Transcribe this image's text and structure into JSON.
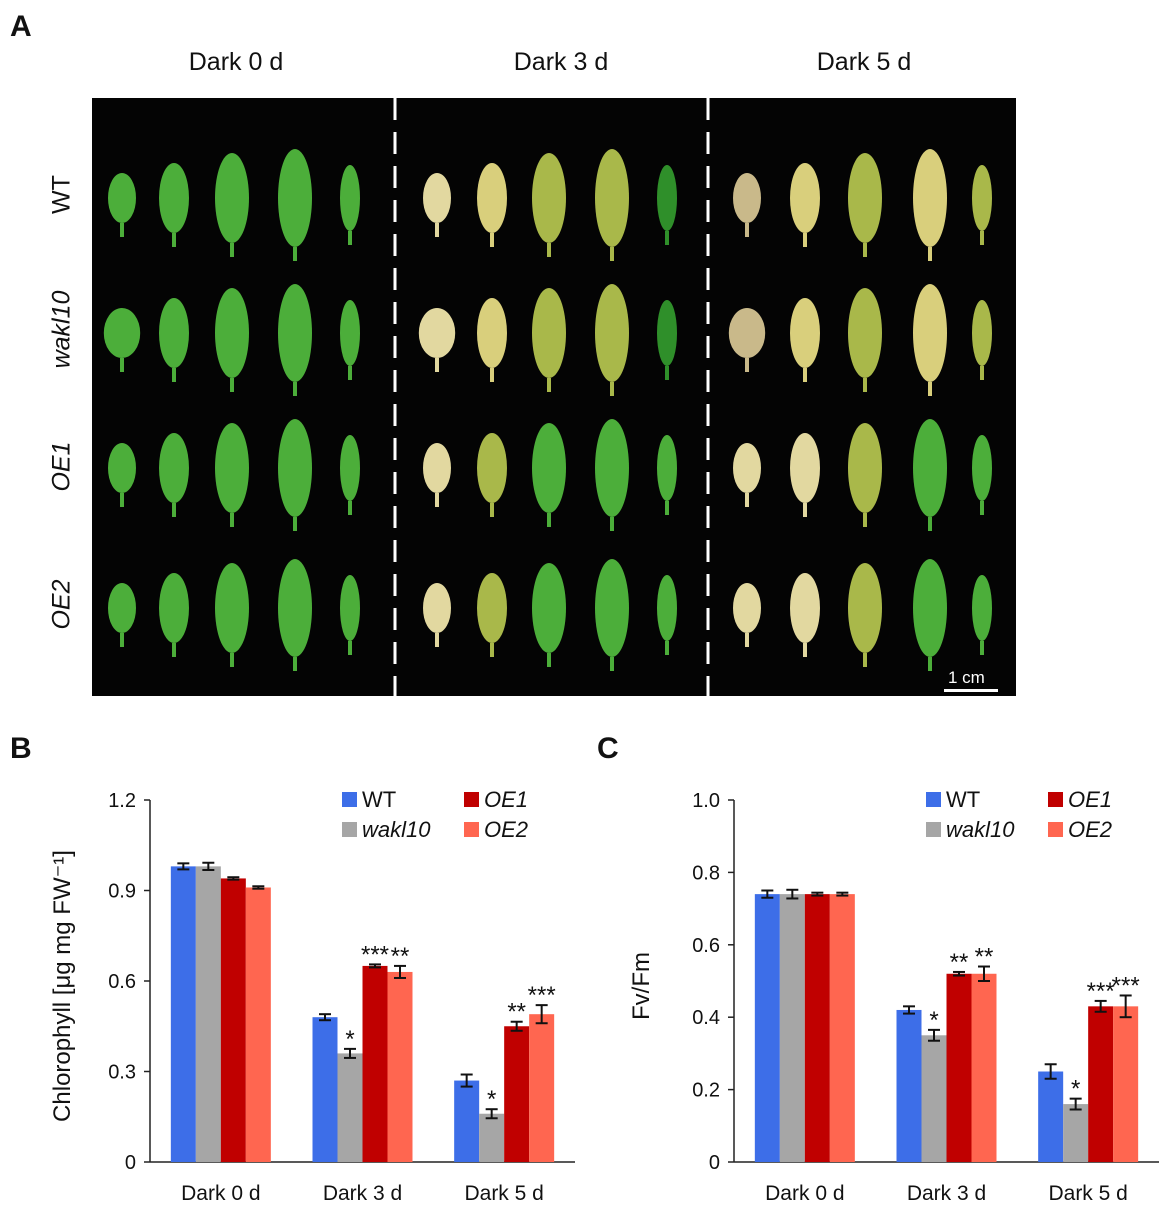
{
  "panel_a": {
    "letter": "A",
    "columns": [
      "Dark 0 d",
      "Dark 3 d",
      "Dark 5 d"
    ],
    "rows": [
      "WT",
      "wakl10",
      "OE1",
      "OE2"
    ],
    "scale_bar": "1 cm",
    "leaf_colors": {
      "green": "#4cae3a",
      "green_dark": "#2f8f2a",
      "yellow_green": "#a9b84a",
      "yellow": "#d9cf7c",
      "pale": "#e2d8a0",
      "tan": "#c9b98a"
    }
  },
  "chart_data": [
    {
      "letter": "B",
      "type": "bar",
      "categories": [
        "Dark 0 d",
        "Dark 3 d",
        "Dark 5 d"
      ],
      "ylabel": "Chlorophyll [μg mg FW⁻¹]",
      "ylim": [
        0,
        1.2
      ],
      "yticks": [
        0,
        0.3,
        0.6,
        0.9,
        1.2
      ],
      "ytick_labels": [
        "0",
        "0.3",
        "0.6",
        "0.9",
        "1.2"
      ],
      "series": [
        {
          "name": "WT",
          "italic": false,
          "color": "#3d6ee8",
          "values": [
            0.98,
            0.48,
            0.27
          ],
          "errors": [
            0.01,
            0.01,
            0.02
          ],
          "marks": [
            "",
            "",
            ""
          ]
        },
        {
          "name": "wakl10",
          "italic": true,
          "color": "#a6a6a6",
          "values": [
            0.98,
            0.36,
            0.16
          ],
          "errors": [
            0.012,
            0.015,
            0.015
          ],
          "marks": [
            "",
            "*",
            "*"
          ]
        },
        {
          "name": "OE1",
          "italic": true,
          "color": "#c00000",
          "values": [
            0.94,
            0.65,
            0.45
          ],
          "errors": [
            0.004,
            0.005,
            0.015
          ],
          "marks": [
            "",
            "***",
            "**"
          ]
        },
        {
          "name": "OE2",
          "italic": true,
          "color": "#ff6650",
          "values": [
            0.91,
            0.63,
            0.49
          ],
          "errors": [
            0.004,
            0.02,
            0.03
          ],
          "marks": [
            "",
            "**",
            "***"
          ]
        }
      ]
    },
    {
      "letter": "C",
      "type": "bar",
      "categories": [
        "Dark 0 d",
        "Dark 3 d",
        "Dark 5 d"
      ],
      "ylabel": "Fv/Fm",
      "ylim": [
        0,
        1.0
      ],
      "yticks": [
        0,
        0.2,
        0.4,
        0.6,
        0.8,
        1.0
      ],
      "ytick_labels": [
        "0",
        "0.2",
        "0.4",
        "0.6",
        "0.8",
        "1.0"
      ],
      "series": [
        {
          "name": "WT",
          "italic": false,
          "color": "#3d6ee8",
          "values": [
            0.74,
            0.42,
            0.25
          ],
          "errors": [
            0.01,
            0.01,
            0.02
          ],
          "marks": [
            "",
            "",
            ""
          ]
        },
        {
          "name": "wakl10",
          "italic": true,
          "color": "#a6a6a6",
          "values": [
            0.74,
            0.35,
            0.16
          ],
          "errors": [
            0.012,
            0.015,
            0.015
          ],
          "marks": [
            "",
            "*",
            "*"
          ]
        },
        {
          "name": "OE1",
          "italic": true,
          "color": "#c00000",
          "values": [
            0.74,
            0.52,
            0.43
          ],
          "errors": [
            0.004,
            0.005,
            0.015
          ],
          "marks": [
            "",
            "**",
            "***"
          ]
        },
        {
          "name": "OE2",
          "italic": true,
          "color": "#ff6650",
          "values": [
            0.74,
            0.52,
            0.43
          ],
          "errors": [
            0.004,
            0.02,
            0.03
          ],
          "marks": [
            "",
            "**",
            "***"
          ]
        }
      ]
    }
  ]
}
